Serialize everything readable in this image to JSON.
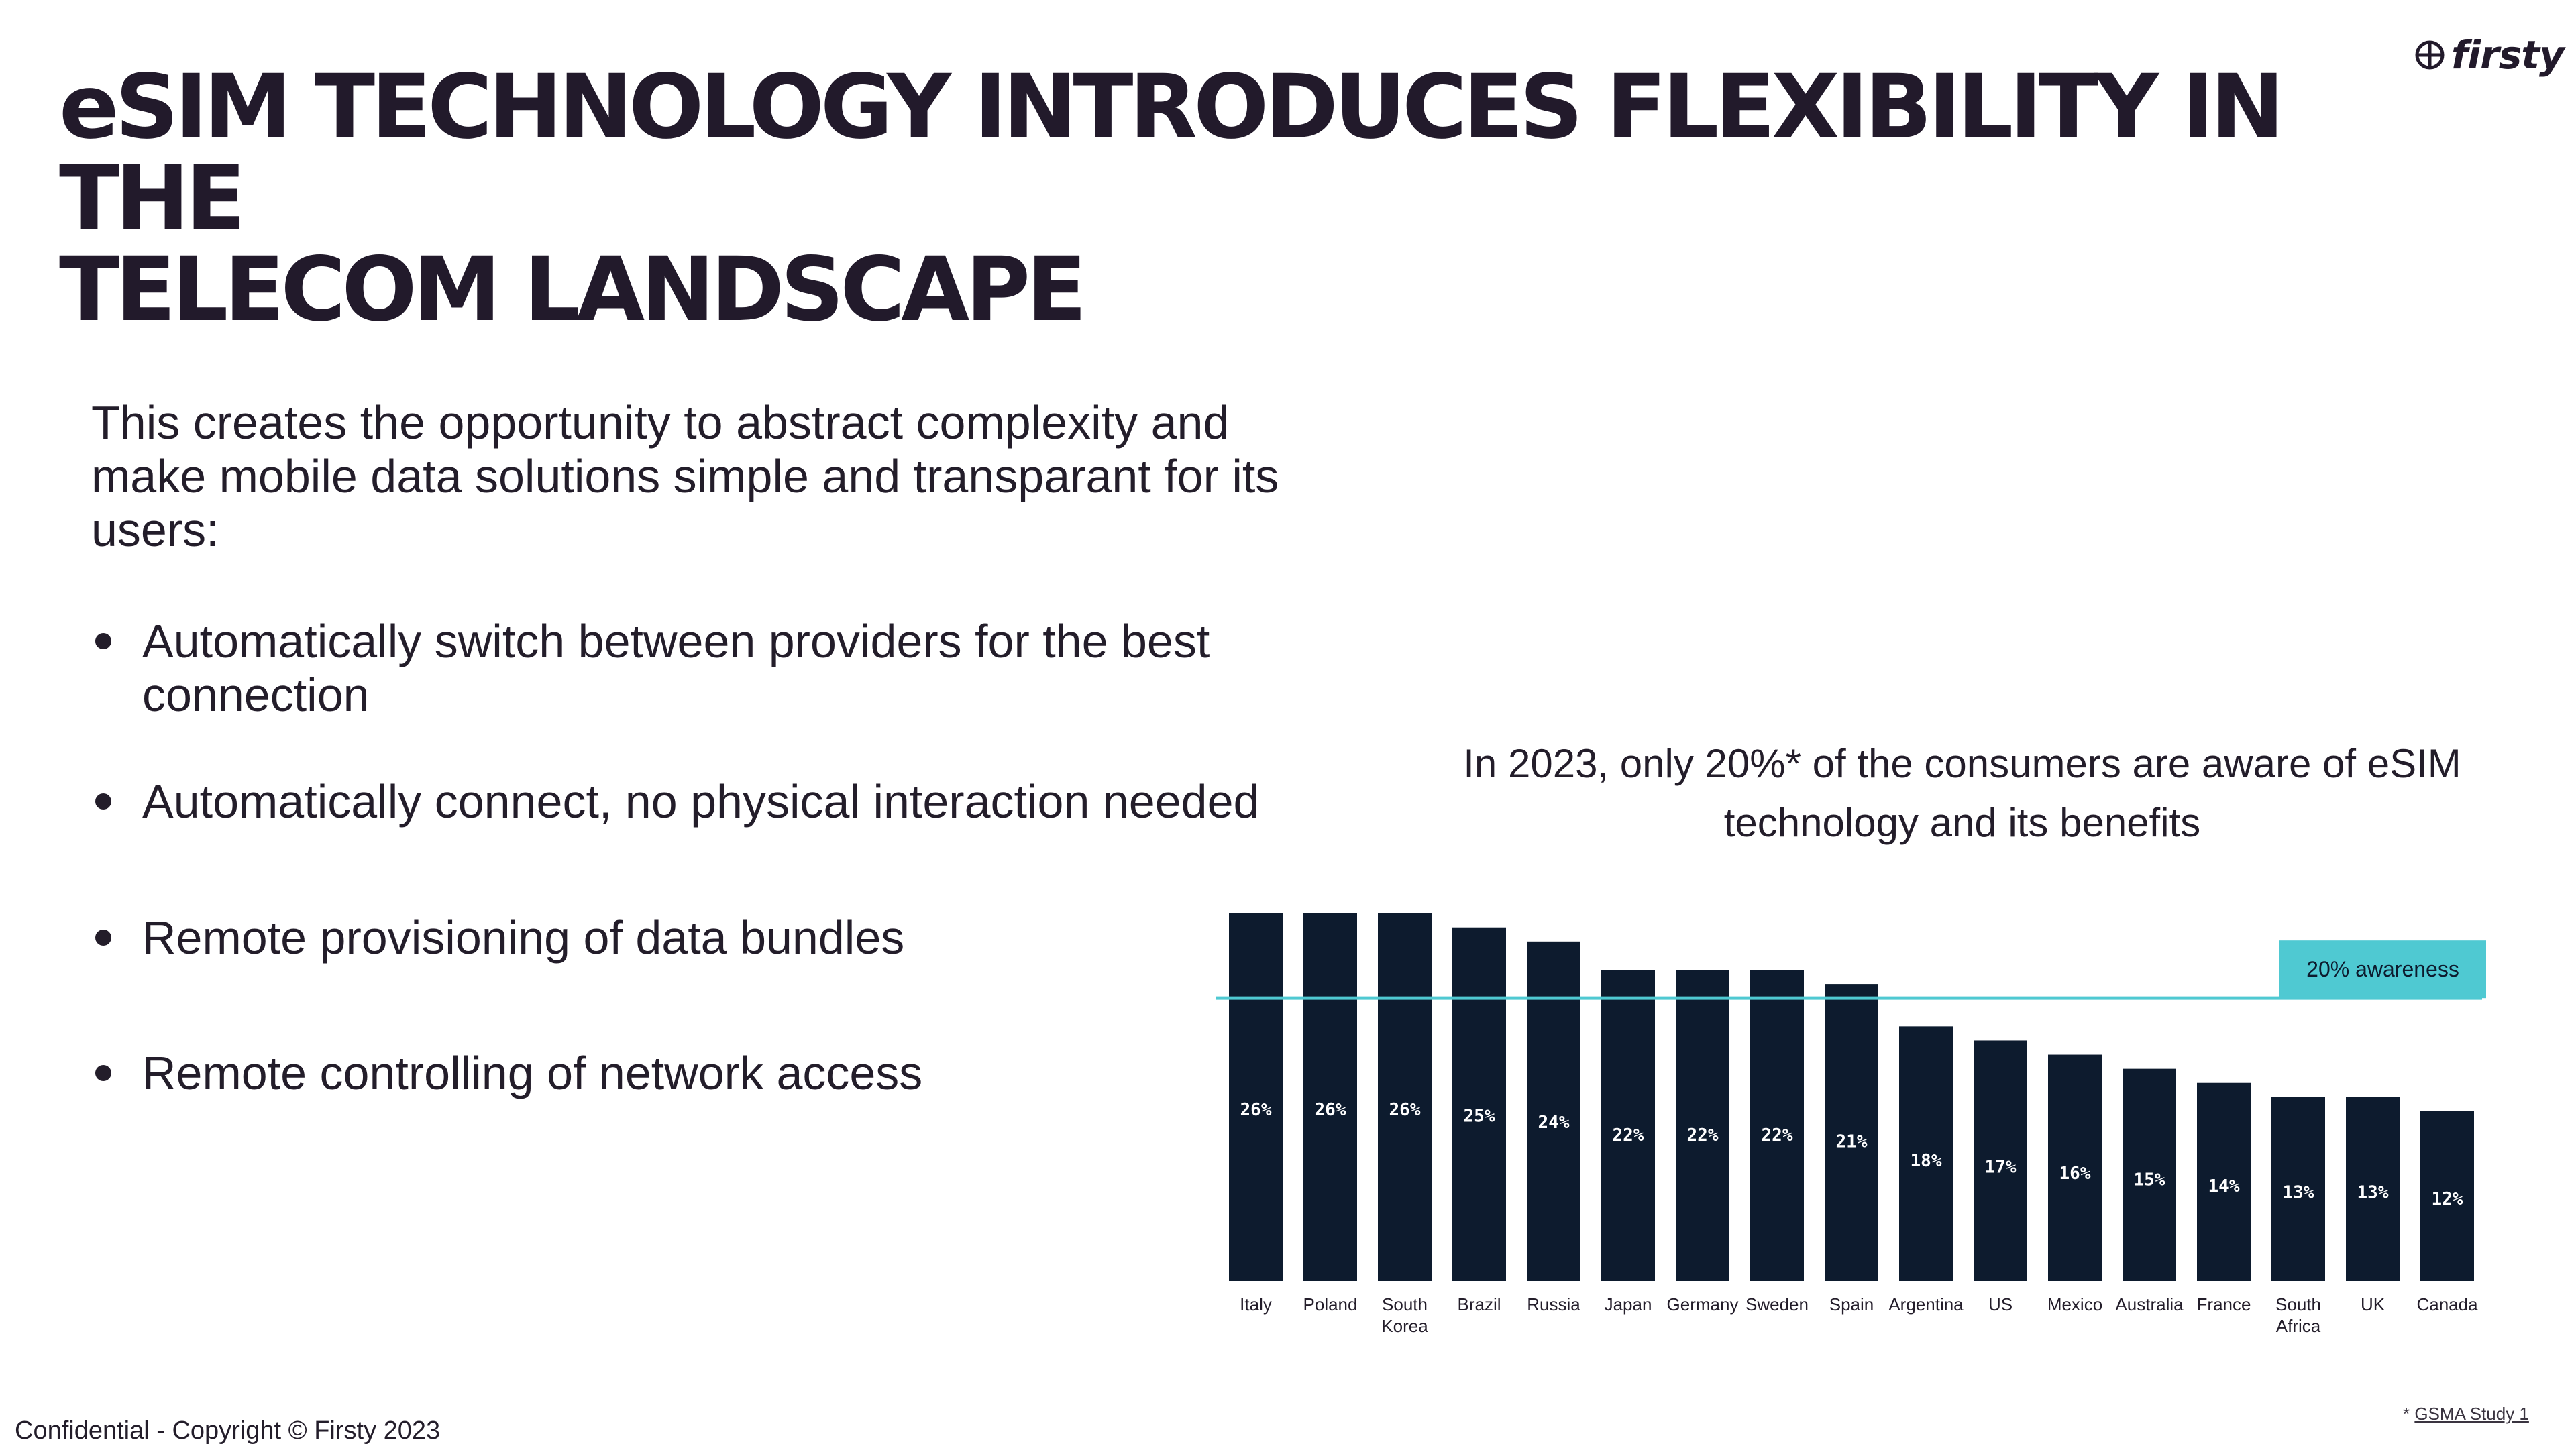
{
  "brand": {
    "logo_text": "firsty",
    "logo_icon": "globe-icon"
  },
  "title": {
    "line1": "eSIM TECHNOLOGY INTRODUCES FLEXIBILITY IN THE",
    "line2": "TELECOM LANDSCAPE"
  },
  "intro": "This creates the opportunity to abstract complexity and make mobile data solutions simple and transparant for its users:",
  "bullets": [
    "Automatically switch between providers for the best connection",
    "Automatically connect, no physical interaction needed",
    "Remote provisioning of data bundles",
    "Remote controlling of network access"
  ],
  "chart_caption": "In 2023, only 20%* of the consumers are aware of eSIM technology and its benefits",
  "chart_data": {
    "type": "bar",
    "categories": [
      "Italy",
      "Poland",
      "South Korea",
      "Brazil",
      "Russia",
      "Japan",
      "Germany",
      "Sweden",
      "Spain",
      "Argentina",
      "US",
      "Mexico",
      "Australia",
      "France",
      "South Africa",
      "UK",
      "Canada"
    ],
    "values": [
      26,
      26,
      26,
      25,
      24,
      22,
      22,
      22,
      21,
      18,
      17,
      16,
      15,
      14,
      13,
      13,
      12
    ],
    "value_labels": [
      "26%",
      "26%",
      "26%",
      "25%",
      "24%",
      "22%",
      "22%",
      "22%",
      "21%",
      "18%",
      "17%",
      "16%",
      "15%",
      "14%",
      "13%",
      "13%",
      "12%"
    ],
    "reference_line": {
      "value": 20,
      "label": "20% awareness",
      "color": "#4fc9d2"
    },
    "bar_color": "#0d1b2e",
    "label_color": "#ffffff",
    "grid": false,
    "ylim": [
      0,
      27.5
    ]
  },
  "footer": {
    "left": "Confidential - Copyright © Firsty 2023",
    "note_marker": "*",
    "source": "GSMA Study 1"
  }
}
